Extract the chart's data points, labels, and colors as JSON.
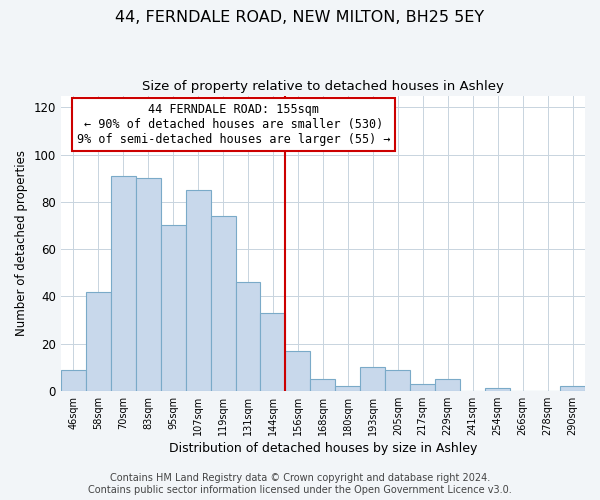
{
  "title": "44, FERNDALE ROAD, NEW MILTON, BH25 5EY",
  "subtitle": "Size of property relative to detached houses in Ashley",
  "xlabel": "Distribution of detached houses by size in Ashley",
  "ylabel": "Number of detached properties",
  "categories": [
    "46sqm",
    "58sqm",
    "70sqm",
    "83sqm",
    "95sqm",
    "107sqm",
    "119sqm",
    "131sqm",
    "144sqm",
    "156sqm",
    "168sqm",
    "180sqm",
    "193sqm",
    "205sqm",
    "217sqm",
    "229sqm",
    "241sqm",
    "254sqm",
    "266sqm",
    "278sqm",
    "290sqm"
  ],
  "values": [
    9,
    42,
    91,
    90,
    70,
    85,
    74,
    46,
    33,
    17,
    5,
    2,
    10,
    9,
    3,
    5,
    0,
    1,
    0,
    0,
    2
  ],
  "bar_color": "#c8d8eb",
  "bar_edge_color": "#7aaac8",
  "vline_color": "#cc0000",
  "annotation_text": "44 FERNDALE ROAD: 155sqm\n← 90% of detached houses are smaller (530)\n9% of semi-detached houses are larger (55) →",
  "annotation_box_color": "#ffffff",
  "annotation_box_edge_color": "#cc0000",
  "ylim": [
    0,
    125
  ],
  "yticks": [
    0,
    20,
    40,
    60,
    80,
    100,
    120
  ],
  "background_color": "#f2f5f8",
  "plot_bg_color": "#ffffff",
  "footer": "Contains HM Land Registry data © Crown copyright and database right 2024.\nContains public sector information licensed under the Open Government Licence v3.0.",
  "title_fontsize": 11.5,
  "subtitle_fontsize": 9.5,
  "xlabel_fontsize": 9,
  "ylabel_fontsize": 8.5,
  "annotation_fontsize": 8.5,
  "footer_fontsize": 7
}
